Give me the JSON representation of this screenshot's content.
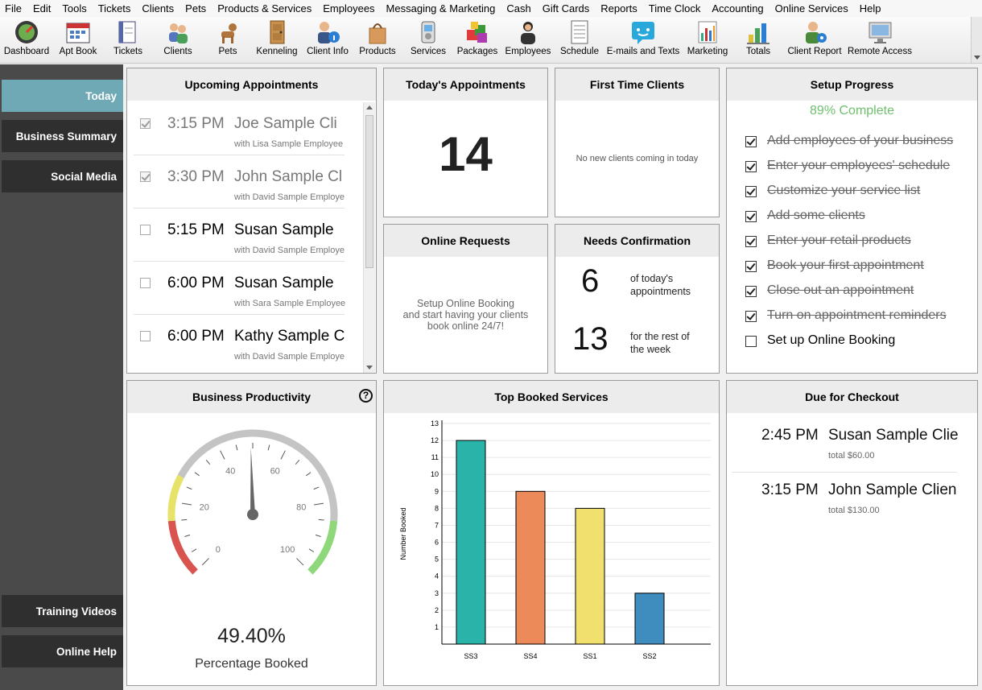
{
  "menu": [
    "File",
    "Edit",
    "Tools",
    "Tickets",
    "Clients",
    "Pets",
    "Products & Services",
    "Employees",
    "Messaging & Marketing",
    "Cash",
    "Gift Cards",
    "Reports",
    "Time Clock",
    "Accounting",
    "Online Services",
    "Help"
  ],
  "toolbar": [
    {
      "label": "Dashboard",
      "icon": "dashboard-icon"
    },
    {
      "label": "Apt Book",
      "icon": "calendar-icon"
    },
    {
      "label": "Tickets",
      "icon": "ticket-icon"
    },
    {
      "label": "Clients",
      "icon": "clients-icon"
    },
    {
      "label": "Pets",
      "icon": "dog-icon"
    },
    {
      "label": "Kenneling",
      "icon": "door-icon"
    },
    {
      "label": "Client Info",
      "icon": "client-info-icon"
    },
    {
      "label": "Products",
      "icon": "shopping-bag-icon"
    },
    {
      "label": "Services",
      "icon": "scale-icon"
    },
    {
      "label": "Packages",
      "icon": "packages-icon"
    },
    {
      "label": "Employees",
      "icon": "employee-icon"
    },
    {
      "label": "Schedule",
      "icon": "schedule-icon"
    },
    {
      "label": "E-mails and Texts",
      "icon": "chat-icon"
    },
    {
      "label": "Marketing",
      "icon": "marketing-chart-icon"
    },
    {
      "label": "Totals",
      "icon": "totals-chart-icon"
    },
    {
      "label": "Client Report",
      "icon": "client-report-icon"
    },
    {
      "label": "Remote Access",
      "icon": "monitor-icon"
    }
  ],
  "sidebar": {
    "top": [
      "Today",
      "Business Summary",
      "Social Media"
    ],
    "bottom": [
      "Training Videos",
      "Online Help"
    ]
  },
  "upcoming": {
    "title": "Upcoming Appointments",
    "items": [
      {
        "time": "3:15 PM",
        "client": "Joe Sample Cli",
        "employee": "with Lisa Sample Employee",
        "checked": true
      },
      {
        "time": "3:30 PM",
        "client": "John Sample Cl",
        "employee": "with David Sample Employe",
        "checked": true
      },
      {
        "time": "5:15 PM",
        "client": "Susan Sample",
        "employee": "with David Sample Employe",
        "checked": false
      },
      {
        "time": "6:00 PM",
        "client": "Susan Sample",
        "employee": "with Sara Sample Employee",
        "checked": false
      },
      {
        "time": "6:00 PM",
        "client": "Kathy Sample C",
        "employee": "with David Sample Employe",
        "checked": false
      }
    ]
  },
  "today_appts": {
    "title": "Today's Appointments",
    "count": "14"
  },
  "first_time": {
    "title": "First Time Clients",
    "message": "No new clients coming in today"
  },
  "online_requests": {
    "title": "Online Requests",
    "line1": "Setup Online Booking",
    "line2": "and start having your clients",
    "line3": "book online 24/7!"
  },
  "needs_conf": {
    "title": "Needs Confirmation",
    "n1": "6",
    "t1a": "of today's",
    "t1b": "appointments",
    "n2": "13",
    "t2a": "for the rest of",
    "t2b": "the week"
  },
  "setup": {
    "title": "Setup Progress",
    "progress": "89% Complete",
    "items": [
      {
        "text": "Add employees of your business",
        "done": true
      },
      {
        "text": "Enter your employees' schedule",
        "done": true
      },
      {
        "text": "Customize your service list",
        "done": true
      },
      {
        "text": "Add some clients",
        "done": true
      },
      {
        "text": "Enter your retail products",
        "done": true
      },
      {
        "text": "Book your first appointment",
        "done": true
      },
      {
        "text": "Close out an appointment",
        "done": true
      },
      {
        "text": "Turn on appointment reminders",
        "done": true
      },
      {
        "text": "Set up Online Booking",
        "done": false
      }
    ]
  },
  "productivity": {
    "title": "Business Productivity",
    "value": "49.40%",
    "value_num": 49.4,
    "caption": "Percentage Booked",
    "ticks": [
      "0",
      "20",
      "40",
      "60",
      "80",
      "100"
    ]
  },
  "due_checkout": {
    "title": "Due for Checkout",
    "items": [
      {
        "time": "2:45 PM",
        "client": "Susan Sample Clie",
        "total": "total $60.00"
      },
      {
        "time": "3:15 PM",
        "client": "John Sample Clien",
        "total": "total $130.00"
      }
    ]
  },
  "top_services_title": "Top Booked Services",
  "chart_data": {
    "type": "bar",
    "title": "Top Booked Services",
    "categories": [
      "SS3",
      "SS4",
      "SS1",
      "SS2"
    ],
    "values": [
      12,
      9,
      8,
      3
    ],
    "colors": [
      "#2ab3a9",
      "#ec8a5a",
      "#f1e06e",
      "#3f8dbf"
    ],
    "ylabel": "Number Booked",
    "xlabel": "",
    "ylim": [
      0,
      13
    ],
    "yticks": [
      1,
      2,
      3,
      4,
      5,
      6,
      7,
      8,
      9,
      10,
      11,
      12,
      13
    ],
    "grid": true
  }
}
